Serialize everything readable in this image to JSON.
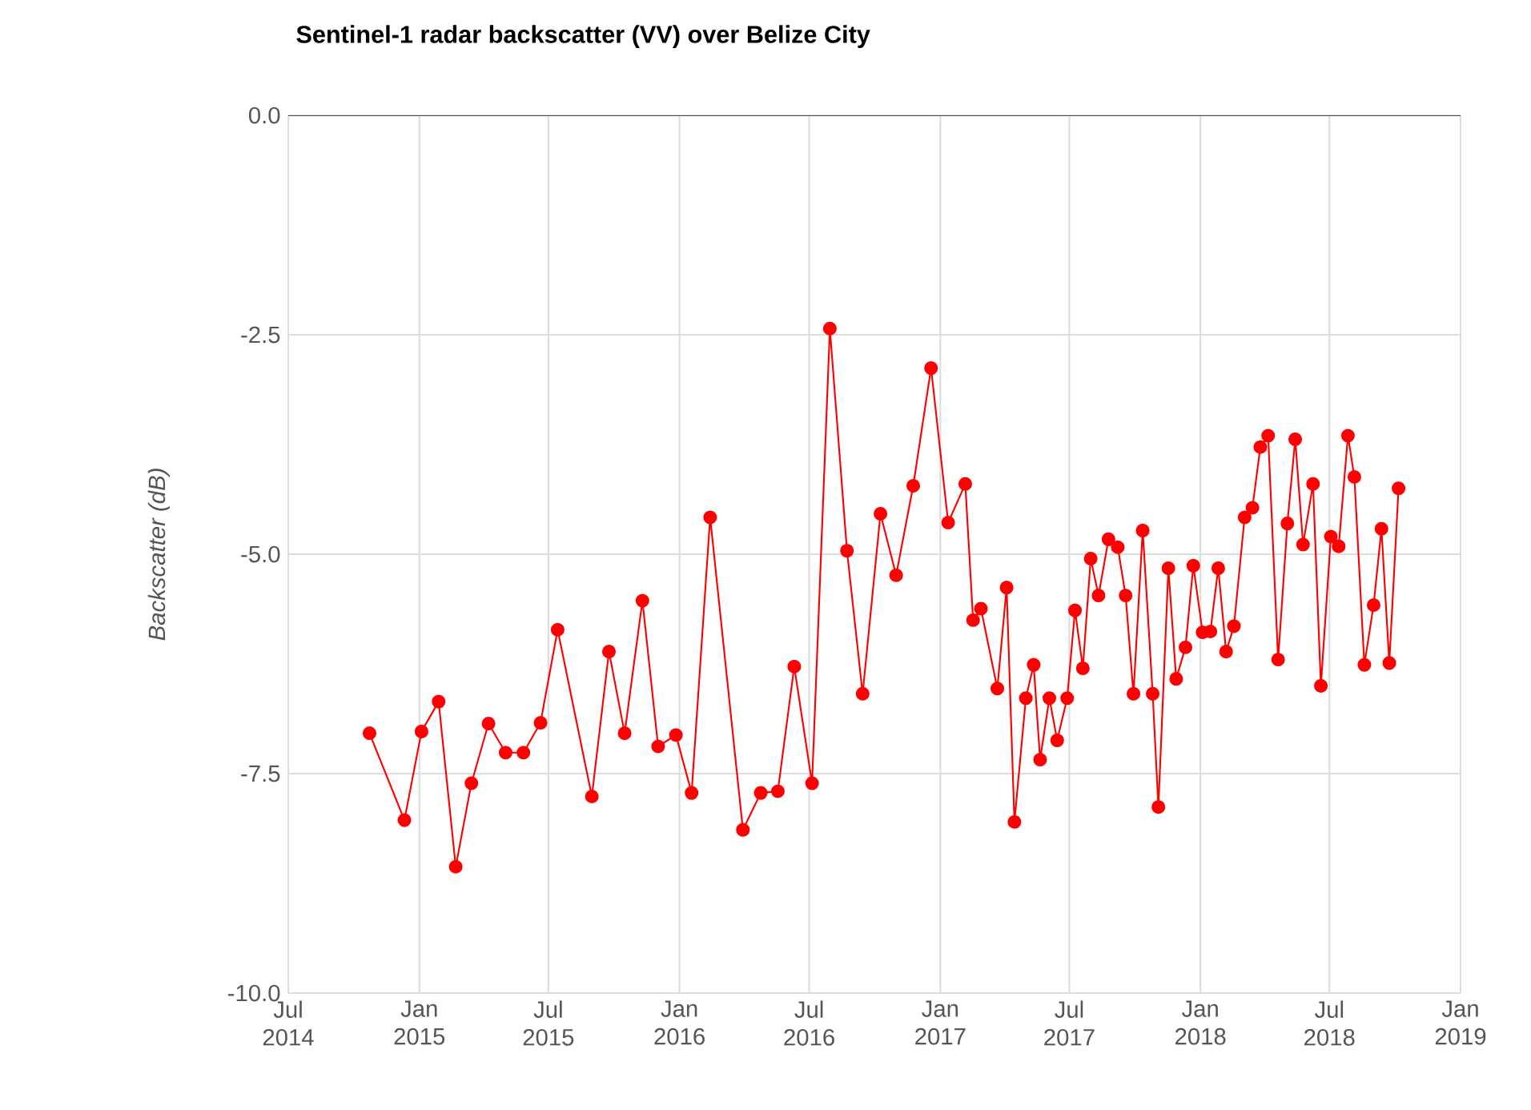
{
  "chart_data": {
    "type": "line",
    "title": "Sentinel-1 radar backscatter (VV) over Belize City",
    "ylabel": "Backscatter (dB)",
    "x": [
      "2014-10-23",
      "2014-12-11",
      "2015-01-04",
      "2015-01-28",
      "2015-02-21",
      "2015-03-15",
      "2015-04-08",
      "2015-05-02",
      "2015-05-27",
      "2015-06-20",
      "2015-07-14",
      "2015-08-31",
      "2015-09-24",
      "2015-10-16",
      "2015-11-10",
      "2015-12-02",
      "2015-12-27",
      "2016-01-18",
      "2016-02-13",
      "2016-03-30",
      "2016-04-24",
      "2016-05-18",
      "2016-06-10",
      "2016-07-05",
      "2016-07-30",
      "2016-08-23",
      "2016-09-14",
      "2016-10-09",
      "2016-10-31",
      "2016-11-24",
      "2016-12-19",
      "2017-01-12",
      "2017-02-05",
      "2017-02-16",
      "2017-02-27",
      "2017-03-22",
      "2017-04-04",
      "2017-04-15",
      "2017-05-01",
      "2017-05-12",
      "2017-05-21",
      "2017-06-03",
      "2017-06-14",
      "2017-06-28",
      "2017-07-09",
      "2017-07-20",
      "2017-07-31",
      "2017-08-11",
      "2017-08-25",
      "2017-09-07",
      "2017-09-18",
      "2017-09-29",
      "2017-10-12",
      "2017-10-26",
      "2017-11-03",
      "2017-11-17",
      "2017-11-28",
      "2017-12-11",
      "2017-12-22",
      "2018-01-04",
      "2018-01-15",
      "2018-01-26",
      "2018-02-06",
      "2018-02-17",
      "2018-03-04",
      "2018-03-15",
      "2018-03-26",
      "2018-04-06",
      "2018-04-20",
      "2018-05-03",
      "2018-05-14",
      "2018-05-25",
      "2018-06-08",
      "2018-06-19",
      "2018-07-03",
      "2018-07-14",
      "2018-07-27",
      "2018-08-05",
      "2018-08-19",
      "2018-09-01",
      "2018-09-12",
      "2018-09-23",
      "2018-10-06"
    ],
    "series": [
      {
        "color": "#ff0000",
        "values": [
          -7.04,
          -8.03,
          -7.02,
          -6.68,
          -8.56,
          -7.61,
          -6.93,
          -7.26,
          -7.26,
          -6.92,
          -5.86,
          -7.76,
          -6.11,
          -7.04,
          -5.53,
          -7.19,
          -7.06,
          -7.72,
          -4.58,
          -8.14,
          -7.72,
          -7.7,
          -6.28,
          -7.61,
          -2.43,
          -4.96,
          -6.59,
          -4.54,
          -5.24,
          -4.22,
          -2.88,
          -4.64,
          -4.2,
          -5.75,
          -5.62,
          -6.53,
          -5.38,
          -8.05,
          -6.64,
          -6.26,
          -7.34,
          -6.64,
          -7.12,
          -6.64,
          -5.64,
          -6.3,
          -5.05,
          -5.47,
          -4.83,
          -4.92,
          -5.47,
          -6.59,
          -4.73,
          -6.59,
          -7.88,
          -5.16,
          -6.42,
          -6.06,
          -5.13,
          -5.89,
          -5.88,
          -5.16,
          -6.11,
          -5.82,
          -4.58,
          -4.47,
          -3.78,
          -3.65,
          -6.2,
          -4.65,
          -3.69,
          -4.89,
          -4.2,
          -6.5,
          -4.8,
          -4.91,
          -3.65,
          -4.12,
          -6.26,
          -5.58,
          -4.71,
          -6.24,
          -4.25
        ]
      }
    ],
    "xlim": [
      "2014-07-01",
      "2019-01-01"
    ],
    "xticks": [
      {
        "value": "2014-07-01",
        "label": "Jul 2014"
      },
      {
        "value": "2015-01-01",
        "label": "Jan 2015"
      },
      {
        "value": "2015-07-01",
        "label": "Jul 2015"
      },
      {
        "value": "2016-01-01",
        "label": "Jan 2016"
      },
      {
        "value": "2016-07-01",
        "label": "Jul 2016"
      },
      {
        "value": "2017-01-01",
        "label": "Jan 2017"
      },
      {
        "value": "2017-07-01",
        "label": "Jul 2017"
      },
      {
        "value": "2018-01-01",
        "label": "Jan 2018"
      },
      {
        "value": "2018-07-01",
        "label": "Jul 2018"
      },
      {
        "value": "2019-01-01",
        "label": "Jan 2019"
      }
    ],
    "ylim": [
      -10,
      0
    ],
    "yticks": [
      {
        "value": -10,
        "label": "-10.0"
      },
      {
        "value": -7.5,
        "label": "-7.5"
      },
      {
        "value": -5,
        "label": "-5.0"
      },
      {
        "value": -2.5,
        "label": "-2.5"
      },
      {
        "value": 0,
        "label": "0.0"
      }
    ],
    "grid": true,
    "marker": "circle",
    "line_style": "solid"
  }
}
